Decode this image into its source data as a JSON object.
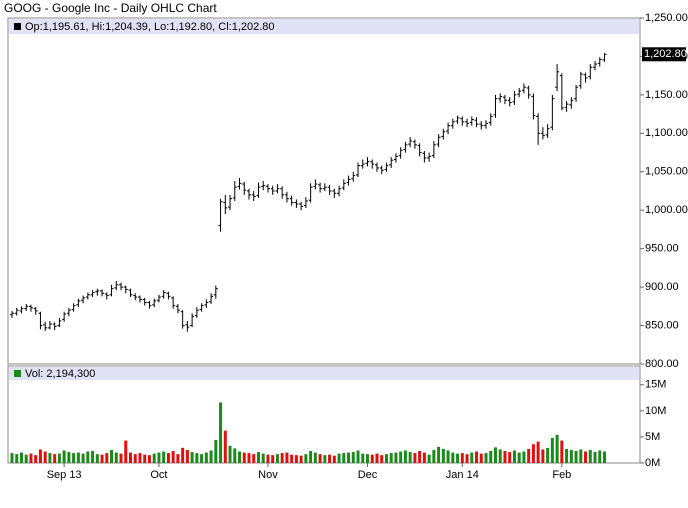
{
  "chart_data": [
    {
      "type": "ohlc",
      "title": "GOOG - Google Inc - Daily OHLC Chart",
      "legend_text": "Op:1,195.61, Hi:1,204.39, Lo:1,192.80, Cl:1,202.80",
      "last_label": {
        "value": 1202.8,
        "label": "1,202.80"
      },
      "color": "#000000",
      "categories": [
        null,
        null,
        null,
        null,
        null,
        null,
        null,
        null,
        null,
        null,
        null,
        "Sep 13",
        null,
        null,
        null,
        null,
        null,
        null,
        null,
        null,
        null,
        null,
        null,
        null,
        null,
        null,
        null,
        null,
        null,
        null,
        null,
        "Oct",
        null,
        null,
        null,
        null,
        null,
        null,
        null,
        null,
        null,
        null,
        null,
        null,
        null,
        null,
        null,
        null,
        null,
        null,
        null,
        null,
        null,
        null,
        "Nov",
        null,
        null,
        null,
        null,
        null,
        null,
        null,
        null,
        null,
        null,
        null,
        null,
        null,
        null,
        null,
        null,
        null,
        null,
        null,
        null,
        "Dec",
        null,
        null,
        null,
        null,
        null,
        null,
        null,
        null,
        null,
        null,
        null,
        null,
        null,
        null,
        null,
        null,
        null,
        null,
        null,
        "Jan 14",
        null,
        null,
        null,
        null,
        null,
        null,
        null,
        null,
        null,
        null,
        null,
        null,
        null,
        null,
        null,
        null,
        null,
        null,
        null,
        null,
        "Feb",
        null,
        null,
        null,
        null,
        null,
        null,
        null,
        null,
        null
      ],
      "ohlc": [
        [
          864,
          869,
          860,
          866
        ],
        [
          866,
          873,
          863,
          870
        ],
        [
          869,
          875,
          866,
          872
        ],
        [
          872,
          878,
          869,
          875
        ],
        [
          875,
          877,
          868,
          873
        ],
        [
          872,
          874,
          864,
          869
        ],
        [
          866,
          868,
          845,
          850
        ],
        [
          851,
          855,
          843,
          847
        ],
        [
          847,
          856,
          845,
          852
        ],
        [
          852,
          854,
          844,
          849
        ],
        [
          850,
          860,
          848,
          856
        ],
        [
          858,
          868,
          855,
          865
        ],
        [
          866,
          873,
          862,
          870
        ],
        [
          871,
          879,
          868,
          876
        ],
        [
          877,
          885,
          874,
          882
        ],
        [
          883,
          889,
          879,
          886
        ],
        [
          887,
          893,
          884,
          890
        ],
        [
          890,
          896,
          887,
          893
        ],
        [
          894,
          898,
          889,
          895
        ],
        [
          895,
          897,
          888,
          892
        ],
        [
          891,
          893,
          884,
          889
        ],
        [
          890,
          903,
          888,
          898
        ],
        [
          899,
          908,
          896,
          903
        ],
        [
          903,
          906,
          896,
          900
        ],
        [
          900,
          902,
          892,
          897
        ],
        [
          896,
          898,
          887,
          890
        ],
        [
          889,
          892,
          883,
          887
        ],
        [
          887,
          889,
          880,
          884
        ],
        [
          884,
          886,
          876,
          880
        ],
        [
          880,
          882,
          872,
          876
        ],
        [
          877,
          885,
          874,
          882
        ],
        [
          883,
          890,
          880,
          887
        ],
        [
          888,
          896,
          885,
          893
        ],
        [
          892,
          894,
          884,
          888
        ],
        [
          886,
          888,
          872,
          876
        ],
        [
          875,
          878,
          866,
          870
        ],
        [
          868,
          870,
          846,
          850
        ],
        [
          851,
          856,
          842,
          848
        ],
        [
          850,
          866,
          848,
          862
        ],
        [
          863,
          874,
          860,
          870
        ],
        [
          871,
          879,
          868,
          876
        ],
        [
          877,
          884,
          873,
          880
        ],
        [
          881,
          892,
          878,
          888
        ],
        [
          890,
          902,
          885,
          898
        ],
        [
          980,
          1015,
          972,
          1011
        ],
        [
          1010,
          1020,
          995,
          1003
        ],
        [
          1004,
          1020,
          1000,
          1015
        ],
        [
          1016,
          1038,
          1012,
          1030
        ],
        [
          1031,
          1042,
          1027,
          1035
        ],
        [
          1034,
          1037,
          1020,
          1026
        ],
        [
          1025,
          1028,
          1014,
          1020
        ],
        [
          1020,
          1025,
          1012,
          1018
        ],
        [
          1019,
          1036,
          1016,
          1030
        ],
        [
          1031,
          1038,
          1026,
          1032
        ],
        [
          1031,
          1034,
          1023,
          1028
        ],
        [
          1028,
          1032,
          1020,
          1025
        ],
        [
          1025,
          1034,
          1022,
          1028
        ],
        [
          1028,
          1031,
          1015,
          1020
        ],
        [
          1020,
          1024,
          1010,
          1015
        ],
        [
          1015,
          1019,
          1006,
          1010
        ],
        [
          1010,
          1014,
          1003,
          1008
        ],
        [
          1008,
          1011,
          1000,
          1005
        ],
        [
          1006,
          1017,
          1003,
          1012
        ],
        [
          1013,
          1035,
          1010,
          1030
        ],
        [
          1031,
          1040,
          1027,
          1034
        ],
        [
          1033,
          1036,
          1023,
          1028
        ],
        [
          1028,
          1035,
          1025,
          1030
        ],
        [
          1030,
          1033,
          1020,
          1025
        ],
        [
          1025,
          1028,
          1016,
          1022
        ],
        [
          1022,
          1032,
          1018,
          1028
        ],
        [
          1029,
          1040,
          1026,
          1035
        ],
        [
          1036,
          1045,
          1032,
          1040
        ],
        [
          1041,
          1050,
          1037,
          1045
        ],
        [
          1046,
          1062,
          1043,
          1058
        ],
        [
          1058,
          1066,
          1054,
          1060
        ],
        [
          1061,
          1069,
          1057,
          1063
        ],
        [
          1063,
          1066,
          1054,
          1060
        ],
        [
          1059,
          1062,
          1050,
          1055
        ],
        [
          1055,
          1058,
          1047,
          1052
        ],
        [
          1053,
          1062,
          1050,
          1058
        ],
        [
          1059,
          1069,
          1055,
          1065
        ],
        [
          1066,
          1074,
          1062,
          1070
        ],
        [
          1071,
          1082,
          1067,
          1078
        ],
        [
          1079,
          1089,
          1075,
          1085
        ],
        [
          1086,
          1095,
          1082,
          1090
        ],
        [
          1089,
          1092,
          1080,
          1085
        ],
        [
          1084,
          1087,
          1070,
          1075
        ],
        [
          1074,
          1077,
          1062,
          1068
        ],
        [
          1068,
          1075,
          1063,
          1070
        ],
        [
          1071,
          1090,
          1068,
          1085
        ],
        [
          1086,
          1099,
          1082,
          1095
        ],
        [
          1096,
          1106,
          1092,
          1102
        ],
        [
          1103,
          1114,
          1099,
          1110
        ],
        [
          1110,
          1119,
          1106,
          1115
        ],
        [
          1116,
          1123,
          1112,
          1120
        ],
        [
          1119,
          1122,
          1110,
          1115
        ],
        [
          1115,
          1119,
          1108,
          1113
        ],
        [
          1114,
          1122,
          1110,
          1118
        ],
        [
          1117,
          1121,
          1108,
          1112
        ],
        [
          1112,
          1116,
          1105,
          1110
        ],
        [
          1110,
          1117,
          1106,
          1113
        ],
        [
          1114,
          1126,
          1110,
          1122
        ],
        [
          1124,
          1150,
          1120,
          1145
        ],
        [
          1145,
          1152,
          1140,
          1148
        ],
        [
          1147,
          1150,
          1138,
          1143
        ],
        [
          1143,
          1147,
          1135,
          1140
        ],
        [
          1141,
          1155,
          1137,
          1150
        ],
        [
          1151,
          1159,
          1147,
          1155
        ],
        [
          1156,
          1165,
          1152,
          1160
        ],
        [
          1159,
          1162,
          1145,
          1150
        ],
        [
          1148,
          1152,
          1118,
          1123
        ],
        [
          1122,
          1126,
          1085,
          1100
        ],
        [
          1100,
          1108,
          1092,
          1097
        ],
        [
          1098,
          1112,
          1094,
          1106
        ],
        [
          1108,
          1150,
          1104,
          1145
        ],
        [
          1160,
          1190,
          1155,
          1180
        ],
        [
          1175,
          1178,
          1130,
          1133
        ],
        [
          1134,
          1142,
          1128,
          1138
        ],
        [
          1137,
          1147,
          1132,
          1143
        ],
        [
          1145,
          1163,
          1141,
          1160
        ],
        [
          1162,
          1180,
          1158,
          1177
        ],
        [
          1176,
          1179,
          1166,
          1172
        ],
        [
          1174,
          1190,
          1170,
          1186
        ],
        [
          1186,
          1194,
          1182,
          1190
        ],
        [
          1191,
          1199,
          1187,
          1196
        ],
        [
          1195.61,
          1204.39,
          1192.8,
          1202.8
        ]
      ],
      "ylim": [
        800,
        1250
      ],
      "yticks": [
        {
          "value": 800,
          "label": "800.00"
        },
        {
          "value": 850,
          "label": "850.00"
        },
        {
          "value": 900,
          "label": "900.00"
        },
        {
          "value": 950,
          "label": "950.00"
        },
        {
          "value": 1000,
          "label": "1,000.00"
        },
        {
          "value": 1050,
          "label": "1,050.00"
        },
        {
          "value": 1100,
          "label": "1,100.00"
        },
        {
          "value": 1150,
          "label": "1,150.00"
        },
        {
          "value": 1200,
          "label": "1,200.00"
        },
        {
          "value": 1250,
          "label": "1,250.00"
        }
      ]
    },
    {
      "type": "volume",
      "legend_text": "Vol: 2,194,300",
      "up_color": "#1a8a1a",
      "down_color": "#e01010",
      "values": [
        1900000,
        1700000,
        2000000,
        1600000,
        1800000,
        1500000,
        2600000,
        2200000,
        1900000,
        1700000,
        1800000,
        2400000,
        2100000,
        1900000,
        2000000,
        1800000,
        2200000,
        2300000,
        1700000,
        1600000,
        1900000,
        2500000,
        2000000,
        1800000,
        4300000,
        2000000,
        1700000,
        1900000,
        1600000,
        1500000,
        1800000,
        2000000,
        2200000,
        1900000,
        2300000,
        1700000,
        2900000,
        2500000,
        2100000,
        1900000,
        1700000,
        2000000,
        2400000,
        4400000,
        11600000,
        6200000,
        3300000,
        2800000,
        2200000,
        2000000,
        1900000,
        1700000,
        2100000,
        1800000,
        1600000,
        1500000,
        1700000,
        1900000,
        2000000,
        1600000,
        1500000,
        1400000,
        1700000,
        2300000,
        2000000,
        1700000,
        1500000,
        1600000,
        1400000,
        1800000,
        1900000,
        2000000,
        2100000,
        2400000,
        1800000,
        1700000,
        1600000,
        1800000,
        1500000,
        1700000,
        1900000,
        2000000,
        2200000,
        2400000,
        2100000,
        1900000,
        2300000,
        2000000,
        1600000,
        2500000,
        3100000,
        2700000,
        2400000,
        2000000,
        1800000,
        1900000,
        1700000,
        2000000,
        2200000,
        1800000,
        1900000,
        2300000,
        3000000,
        2600000,
        2300000,
        2100000,
        2400000,
        2000000,
        2200000,
        2700000,
        3600000,
        4100000,
        2600000,
        2900000,
        4800000,
        5400000,
        4300000,
        2700000,
        2500000,
        2300000,
        2600000,
        2200000,
        2500000,
        2100000,
        2400000,
        2194300
      ],
      "ylim": [
        0,
        18600000
      ],
      "yticks": [
        {
          "value": 0,
          "label": "0M"
        },
        {
          "value": 5000000,
          "label": "5M"
        },
        {
          "value": 10000000,
          "label": "10M"
        },
        {
          "value": 15000000,
          "label": "15M"
        }
      ]
    }
  ]
}
